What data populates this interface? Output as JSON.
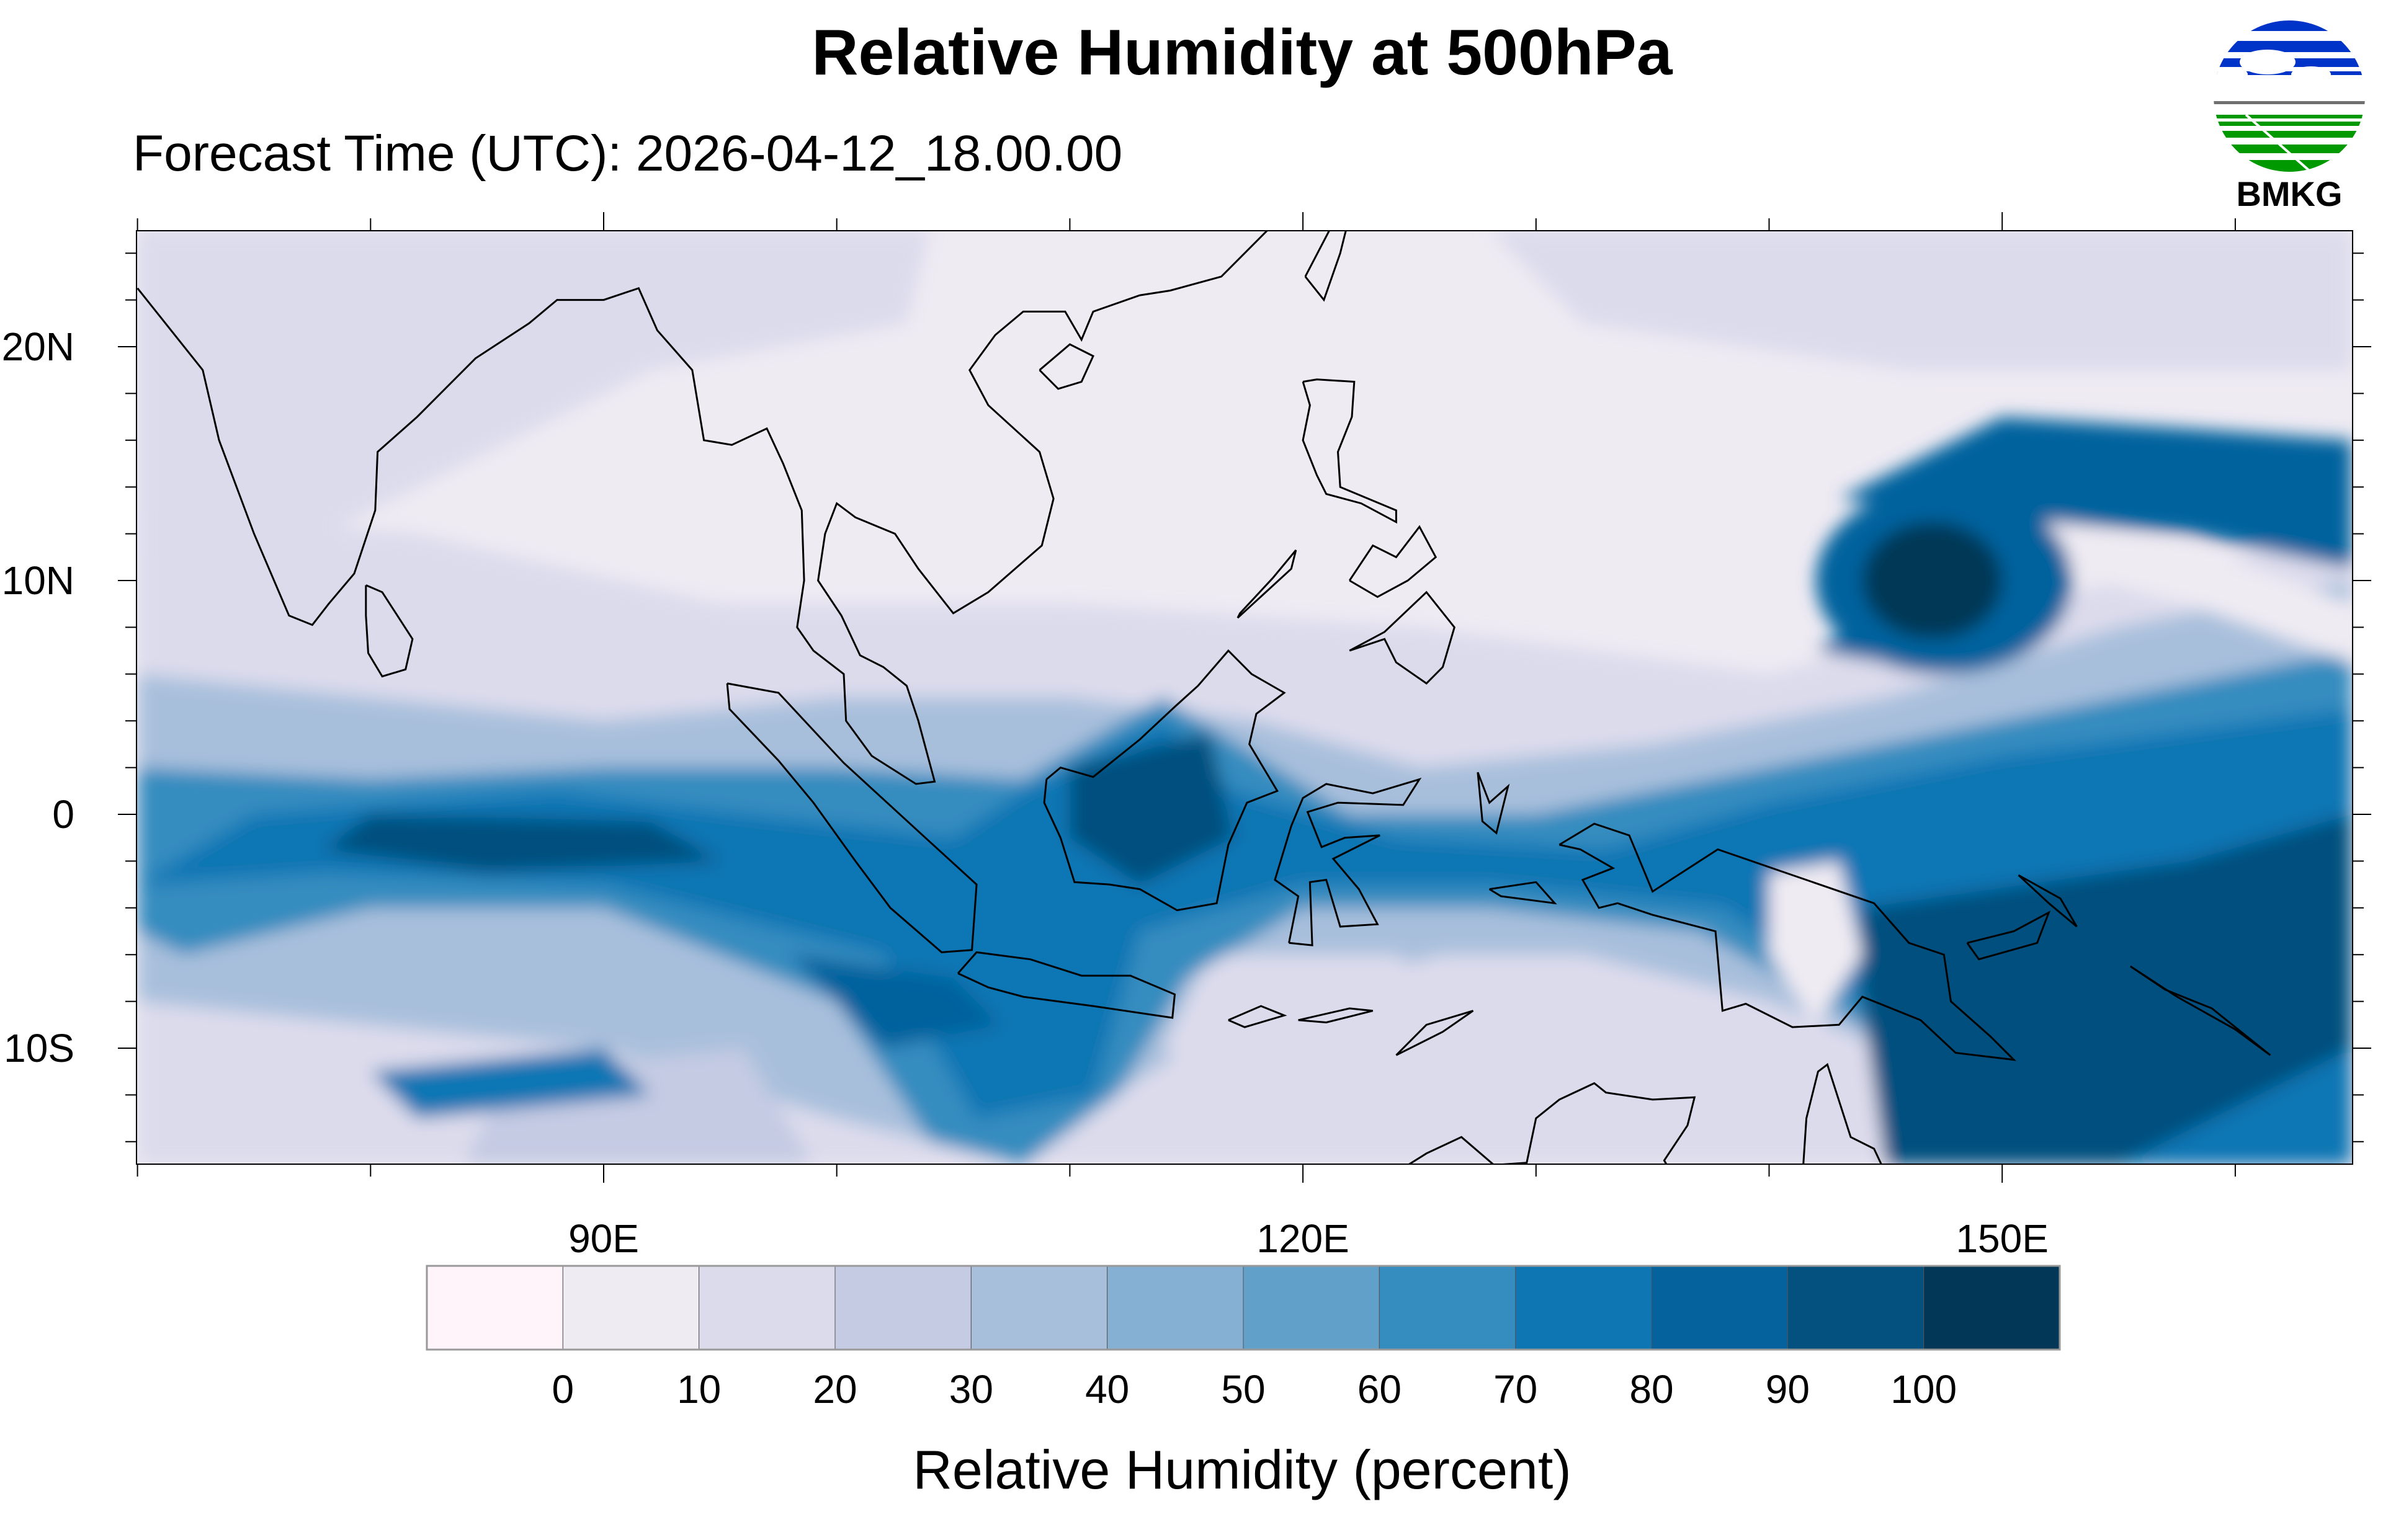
{
  "title": "Relative Humidity at 500hPa",
  "subtitle": "Forecast Time (UTC): 2026-04-12_18.00.00",
  "logo": {
    "text": "BMKG",
    "colors": {
      "blue": "#0033c8",
      "green": "#009a00",
      "gray": "#707070"
    }
  },
  "map": {
    "lon_range": [
      70,
      165
    ],
    "lat_range": [
      -15,
      25
    ],
    "lon_labels": [
      {
        "value": 90,
        "text": "90E"
      },
      {
        "value": 120,
        "text": "120E"
      },
      {
        "value": 150,
        "text": "150E"
      }
    ],
    "lat_labels": [
      {
        "value": 20,
        "text": "20N"
      },
      {
        "value": 10,
        "text": "10N"
      },
      {
        "value": 0,
        "text": "0"
      },
      {
        "value": -10,
        "text": "10S"
      }
    ],
    "features": "Wet band along the equator, cyclone-like swirl near 148E 10N, very humid area over New Guinea"
  },
  "colorbar": {
    "title": "Relative Humidity (percent)",
    "colors": [
      "#fff4fa",
      "#efebf3",
      "#dcdbec",
      "#c5cbe3",
      "#a8bfdc",
      "#86b0d3",
      "#61a0c9",
      "#348cbf",
      "#0f76b4",
      "#05629d",
      "#04507e",
      "#033757"
    ],
    "labels": [
      "0",
      "10",
      "20",
      "30",
      "40",
      "50",
      "60",
      "70",
      "80",
      "90",
      "100"
    ]
  }
}
